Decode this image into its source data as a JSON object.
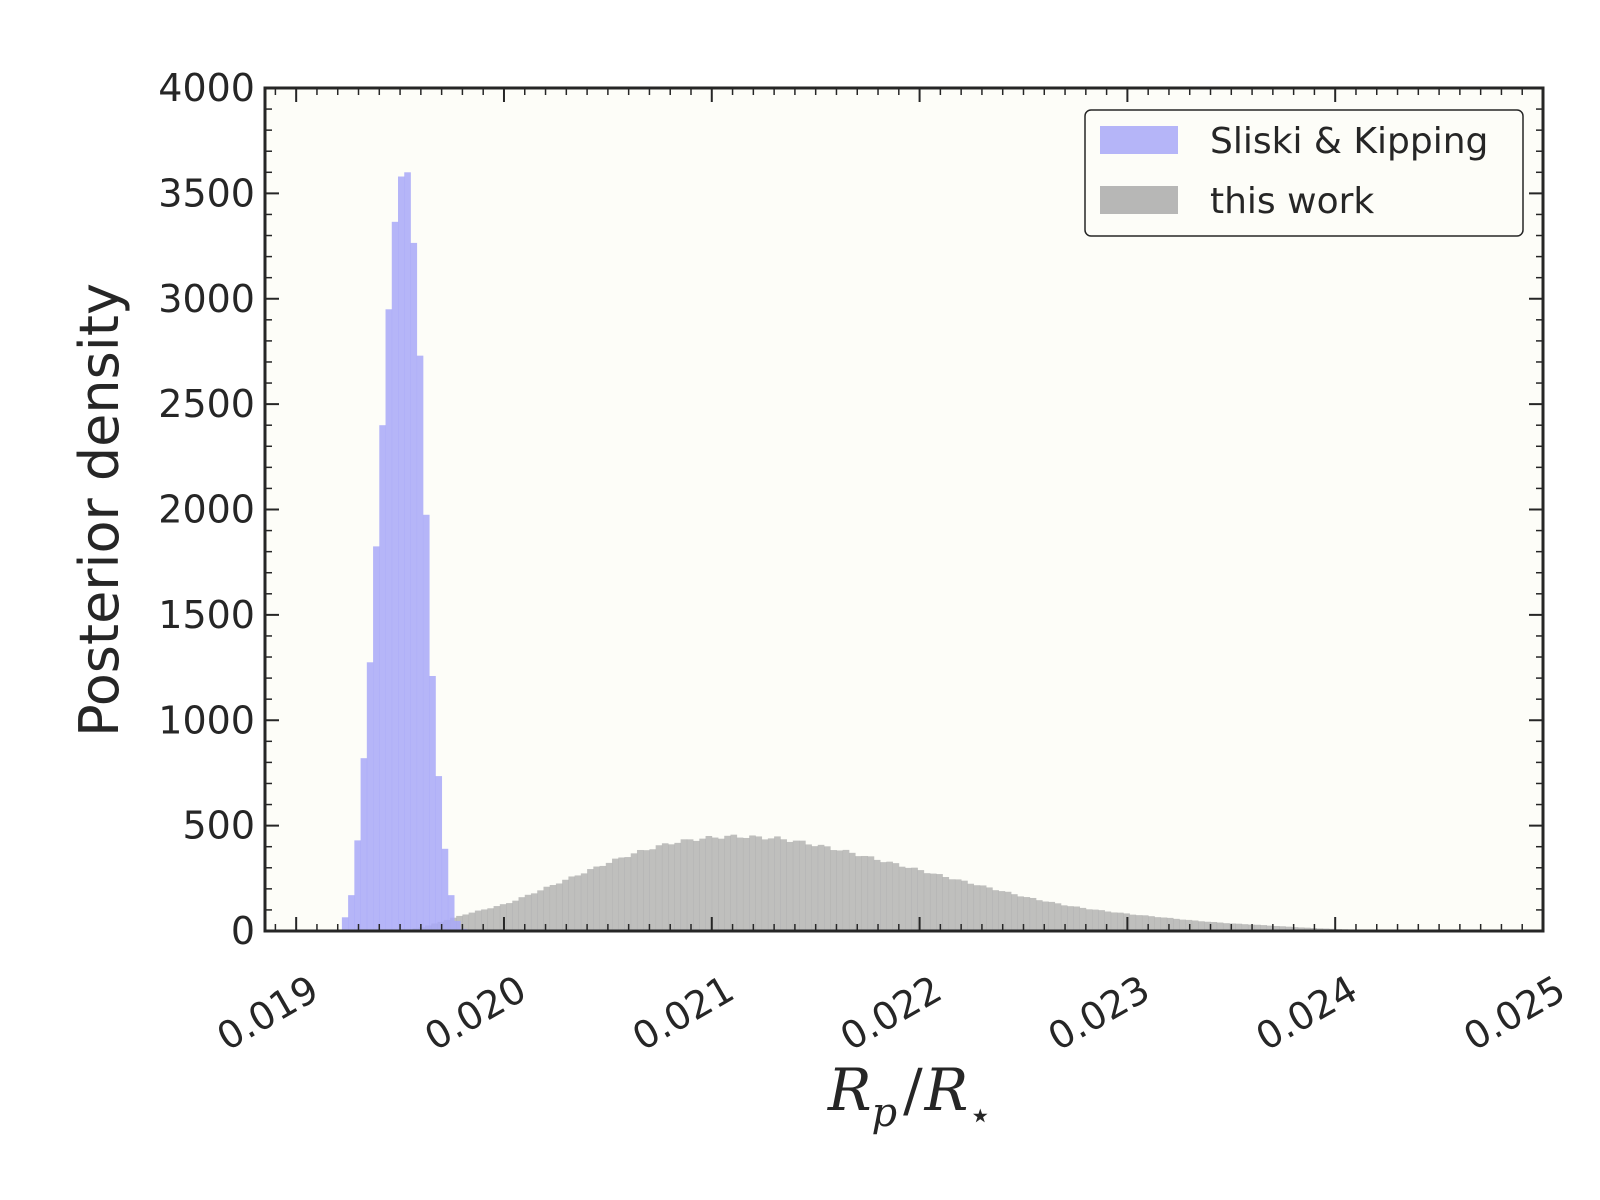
{
  "chart_data": {
    "type": "bar",
    "xlabel": {
      "main": "R",
      "sub1": "p",
      "slash": "/",
      "main2": "R",
      "sub2": "⋆"
    },
    "ylabel": "Posterior density",
    "xlim": [
      0.01885,
      0.025
    ],
    "ylim": [
      0,
      4000
    ],
    "xticks": [
      "0.019",
      "0.020",
      "0.021",
      "0.022",
      "0.023",
      "0.024",
      "0.025"
    ],
    "xtick_values": [
      0.019,
      0.02,
      0.021,
      0.022,
      0.023,
      0.024,
      0.025
    ],
    "yticks": [
      "0",
      "500",
      "1000",
      "1500",
      "2000",
      "2500",
      "3000",
      "3500",
      "4000"
    ],
    "ytick_values": [
      0,
      500,
      1000,
      1500,
      2000,
      2500,
      3000,
      3500,
      4000
    ],
    "legend_position": "top-right",
    "plot_background": "#fdfdf8",
    "series": [
      {
        "name": "this work",
        "color": "#aaaaaa",
        "alpha": 0.75,
        "kind": "histogram",
        "bin_width": 3e-05,
        "x": [
          0.0195,
          0.0196,
          0.0197,
          0.0198,
          0.0199,
          0.02,
          0.0201,
          0.0202,
          0.0203,
          0.0204,
          0.0205,
          0.0206,
          0.0207,
          0.0208,
          0.0209,
          0.021,
          0.0211,
          0.0212,
          0.0213,
          0.0214,
          0.0215,
          0.0216,
          0.0217,
          0.0218,
          0.0219,
          0.022,
          0.0221,
          0.0222,
          0.0223,
          0.0224,
          0.0225,
          0.0226,
          0.0227,
          0.0228,
          0.0229,
          0.023,
          0.0231,
          0.0232,
          0.0233,
          0.0234,
          0.0235,
          0.0236,
          0.0237,
          0.0238,
          0.0239,
          0.024,
          0.0241,
          0.0242,
          0.0243,
          0.0244,
          0.0245,
          0.0246,
          0.0247,
          0.0248
        ],
        "values": [
          0,
          20,
          50,
          80,
          105,
          130,
          170,
          210,
          250,
          290,
          330,
          365,
          395,
          420,
          435,
          445,
          450,
          445,
          440,
          425,
          405,
          385,
          360,
          335,
          310,
          285,
          260,
          235,
          210,
          185,
          160,
          140,
          120,
          105,
          92,
          80,
          70,
          60,
          50,
          42,
          35,
          30,
          24,
          18,
          13,
          9,
          6,
          4,
          3,
          2,
          1,
          1,
          0,
          0
        ]
      },
      {
        "name": "Sliski & Kipping",
        "color": "#a8a8f8",
        "alpha": 0.85,
        "kind": "histogram",
        "bin_width": 3e-05,
        "x": [
          0.01922,
          0.01925,
          0.01928,
          0.01931,
          0.01934,
          0.01937,
          0.0194,
          0.01943,
          0.01946,
          0.01949,
          0.01952,
          0.01955,
          0.01958,
          0.01961,
          0.01964,
          0.01967,
          0.0197,
          0.01973,
          0.01976,
          0.01979,
          0.01982,
          0.01985
        ],
        "values": [
          30,
          100,
          240,
          620,
          1020,
          1530,
          2120,
          2680,
          3220,
          3510,
          3650,
          3550,
          2980,
          2480,
          1470,
          950,
          520,
          260,
          80,
          15,
          5,
          0
        ]
      }
    ]
  },
  "legend": {
    "items": [
      {
        "label": "Sliski & Kipping",
        "color": "#a8a8f8"
      },
      {
        "label": "this work",
        "color": "#aaaaaa"
      }
    ]
  }
}
